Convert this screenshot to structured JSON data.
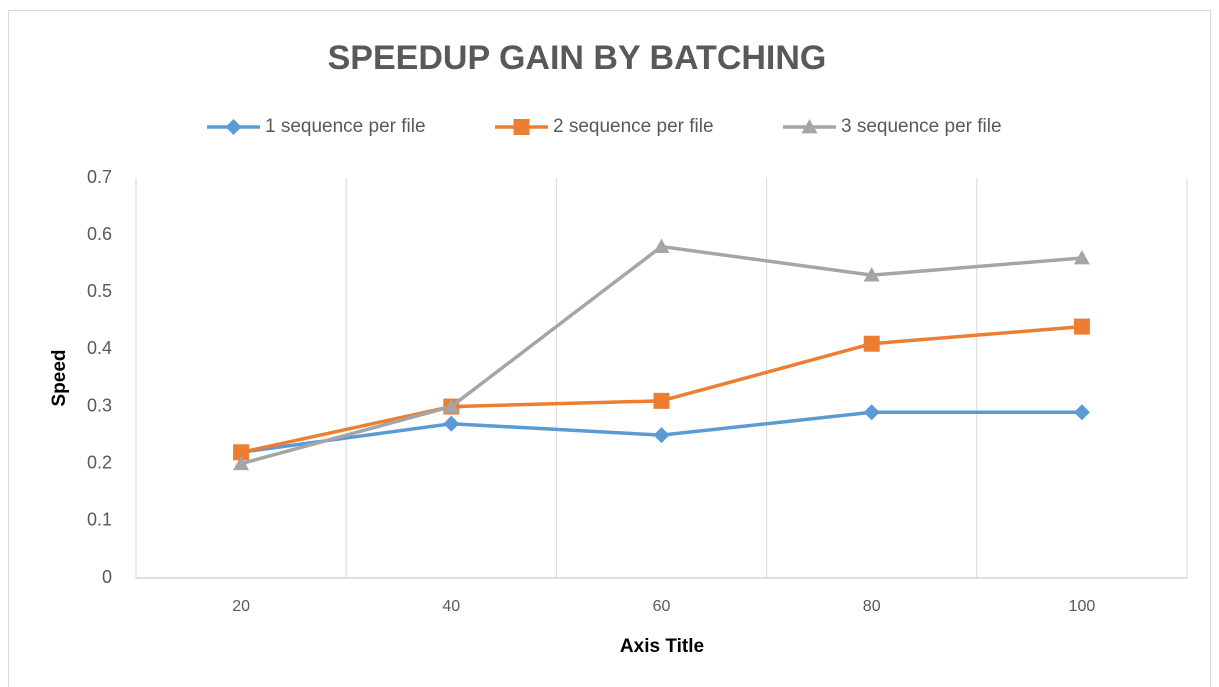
{
  "chart_data": {
    "type": "line",
    "title": "SPEEDUP GAIN BY BATCHING",
    "x_label": "Axis Title",
    "y_label": "Speed",
    "categories": [
      "20",
      "40",
      "60",
      "80",
      "100"
    ],
    "series": [
      {
        "name": "1 sequence per file",
        "color": "#5b9bd5",
        "marker": "diamond",
        "values": [
          0.22,
          0.27,
          0.25,
          0.29,
          0.29
        ]
      },
      {
        "name": "2 sequence per file",
        "color": "#ed7d31",
        "marker": "square",
        "values": [
          0.22,
          0.3,
          0.31,
          0.41,
          0.44
        ]
      },
      {
        "name": "3 sequence per file",
        "color": "#a5a5a5",
        "marker": "triangle",
        "values": [
          0.2,
          0.3,
          0.58,
          0.53,
          0.56
        ]
      }
    ],
    "ylim": [
      0,
      0.7
    ],
    "yticks": [
      0,
      0.1,
      0.2,
      0.3,
      0.4,
      0.5,
      0.6,
      0.7
    ],
    "legend": "top"
  }
}
